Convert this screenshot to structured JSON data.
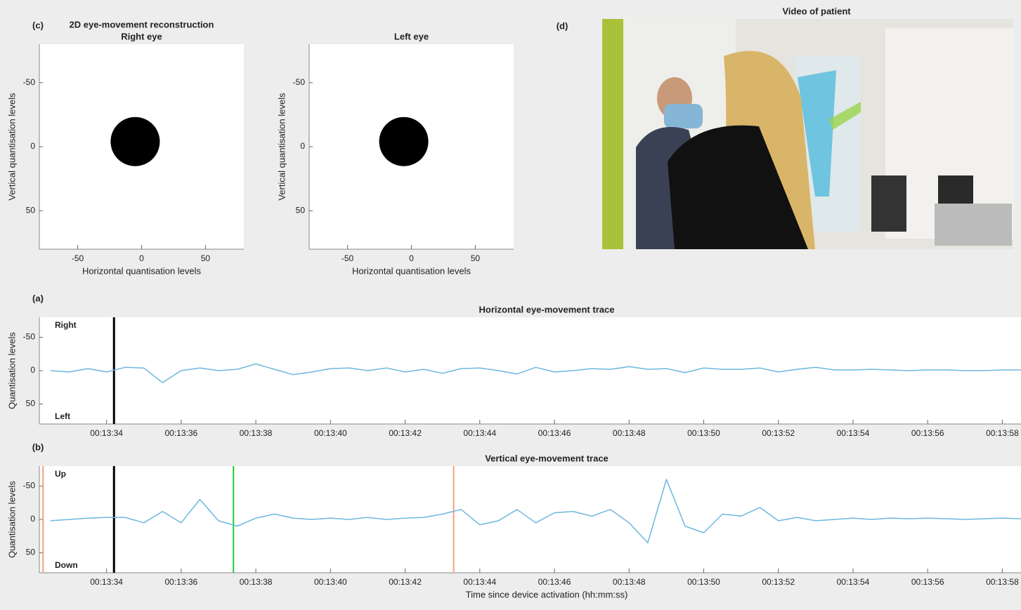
{
  "chart_data": [
    {
      "type": "scatter",
      "panel": "(c)",
      "title": "2D eye-movement reconstruction",
      "subtitle": "Right eye",
      "x": [
        -5
      ],
      "values": [
        -4
      ],
      "color": "#000000",
      "xlim": [
        -80,
        80
      ],
      "ylim": [
        -80,
        80
      ],
      "y_inverted": true,
      "xticks": [
        -50,
        0,
        50
      ],
      "yticks": [
        -50,
        0,
        50
      ],
      "xlabel": "Horizontal quantisation levels",
      "ylabel": "Vertical quantisation levels"
    },
    {
      "type": "scatter",
      "title": "Left eye",
      "x": [
        -6
      ],
      "values": [
        -4
      ],
      "color": "#000000",
      "xlim": [
        -80,
        80
      ],
      "ylim": [
        -80,
        80
      ],
      "y_inverted": true,
      "xticks": [
        -50,
        0,
        50
      ],
      "yticks": [
        -50,
        0,
        50
      ],
      "xlabel": "Horizontal quantisation levels",
      "ylabel": "Vertical quantisation levels"
    },
    {
      "type": "line",
      "panel": "(a)",
      "title": "Horizontal eye-movement trace",
      "color": "#6cb8de",
      "x": [
        812.5,
        813,
        813.5,
        814,
        814.5,
        815,
        815.5,
        816,
        816.5,
        817,
        817.5,
        818,
        818.5,
        819,
        819.5,
        820,
        820.5,
        821,
        821.5,
        822,
        822.5,
        823,
        823.5,
        824,
        824.5,
        825,
        825.5,
        826,
        826.5,
        827,
        827.5,
        828,
        828.5,
        829,
        829.5,
        830,
        830.5,
        831,
        831.5,
        832,
        832.5,
        833,
        833.5,
        834,
        834.5,
        835,
        835.5,
        836,
        836.5,
        837,
        837.5,
        838,
        838.5
      ],
      "values": [
        0,
        2,
        -3,
        2,
        -5,
        -4,
        18,
        0,
        -4,
        0,
        -2,
        -10,
        -2,
        6,
        2,
        -3,
        -4,
        0,
        -4,
        2,
        -2,
        4,
        -3,
        -4,
        0,
        5,
        -5,
        2,
        0,
        -3,
        -2,
        -6,
        -2,
        -3,
        3,
        -4,
        -2,
        -2,
        -4,
        2,
        -2,
        -5,
        -1,
        -1,
        -2,
        -1,
        0,
        -1,
        -1,
        0,
        0,
        -1,
        -1
      ],
      "xlim": [
        812.2,
        838.5
      ],
      "ylim": [
        -80,
        80
      ],
      "y_inverted": true,
      "xticks": [
        {
          "value": 814,
          "label": "00:13:34"
        },
        {
          "value": 816,
          "label": "00:13:36"
        },
        {
          "value": 818,
          "label": "00:13:38"
        },
        {
          "value": 820,
          "label": "00:13:40"
        },
        {
          "value": 822,
          "label": "00:13:42"
        },
        {
          "value": 824,
          "label": "00:13:44"
        },
        {
          "value": 826,
          "label": "00:13:46"
        },
        {
          "value": 828,
          "label": "00:13:48"
        },
        {
          "value": 830,
          "label": "00:13:50"
        },
        {
          "value": 832,
          "label": "00:13:52"
        },
        {
          "value": 834,
          "label": "00:13:54"
        },
        {
          "value": 836,
          "label": "00:13:56"
        },
        {
          "value": 838,
          "label": "00:13:58"
        }
      ],
      "yticks": [
        -50,
        0,
        50
      ],
      "ylabel": "Quantisation levels",
      "annotations": [
        {
          "text": "Right",
          "position": "top"
        },
        {
          "text": "Left",
          "position": "bottom"
        }
      ],
      "vlines": [
        {
          "x": 814.2,
          "color": "#000000"
        }
      ]
    },
    {
      "type": "line",
      "panel": "(b)",
      "title": "Vertical eye-movement trace",
      "color": "#6cb8de",
      "x": [
        812.5,
        813,
        813.5,
        814,
        814.5,
        815,
        815.5,
        816,
        816.5,
        817,
        817.5,
        818,
        818.5,
        819,
        819.5,
        820,
        820.5,
        821,
        821.5,
        822,
        822.5,
        823,
        823.5,
        824,
        824.5,
        825,
        825.5,
        826,
        826.5,
        827,
        827.5,
        828,
        828.5,
        829,
        829.5,
        830,
        830.5,
        831,
        831.5,
        832,
        832.5,
        833,
        833.5,
        834,
        834.5,
        835,
        835.5,
        836,
        836.5,
        837,
        837.5,
        838,
        838.5
      ],
      "values": [
        2,
        0,
        -2,
        -3,
        -3,
        5,
        -12,
        5,
        -30,
        2,
        10,
        -2,
        -8,
        -2,
        0,
        -2,
        0,
        -3,
        0,
        -2,
        -3,
        -8,
        -15,
        8,
        2,
        -15,
        5,
        -10,
        -12,
        -5,
        -15,
        5,
        35,
        -60,
        10,
        20,
        -8,
        -5,
        -18,
        2,
        -3,
        2,
        0,
        -2,
        0,
        -2,
        -1,
        -2,
        -1,
        0,
        -1,
        -2,
        -1
      ],
      "xlim": [
        812.2,
        838.5
      ],
      "ylim": [
        -80,
        80
      ],
      "y_inverted": true,
      "xticks": [
        {
          "value": 814,
          "label": "00:13:34"
        },
        {
          "value": 816,
          "label": "00:13:36"
        },
        {
          "value": 818,
          "label": "00:13:38"
        },
        {
          "value": 820,
          "label": "00:13:40"
        },
        {
          "value": 822,
          "label": "00:13:42"
        },
        {
          "value": 824,
          "label": "00:13:44"
        },
        {
          "value": 826,
          "label": "00:13:46"
        },
        {
          "value": 828,
          "label": "00:13:48"
        },
        {
          "value": 830,
          "label": "00:13:50"
        },
        {
          "value": 832,
          "label": "00:13:52"
        },
        {
          "value": 834,
          "label": "00:13:54"
        },
        {
          "value": 836,
          "label": "00:13:56"
        },
        {
          "value": 838,
          "label": "00:13:58"
        }
      ],
      "yticks": [
        -50,
        0,
        50
      ],
      "ylabel": "Quantisation levels",
      "xlabel": "Time since device activation (hh:mm:ss)",
      "annotations": [
        {
          "text": "Up",
          "position": "top"
        },
        {
          "text": "Down",
          "position": "bottom"
        }
      ],
      "vlines": [
        {
          "x": 812.3,
          "color": "#f0a080"
        },
        {
          "x": 814.2,
          "color": "#000000"
        },
        {
          "x": 817.4,
          "color": "#22cc33"
        },
        {
          "x": 823.3,
          "color": "#f0a080"
        }
      ]
    }
  ],
  "video": {
    "panel": "(d)",
    "title": "Video of patient"
  }
}
